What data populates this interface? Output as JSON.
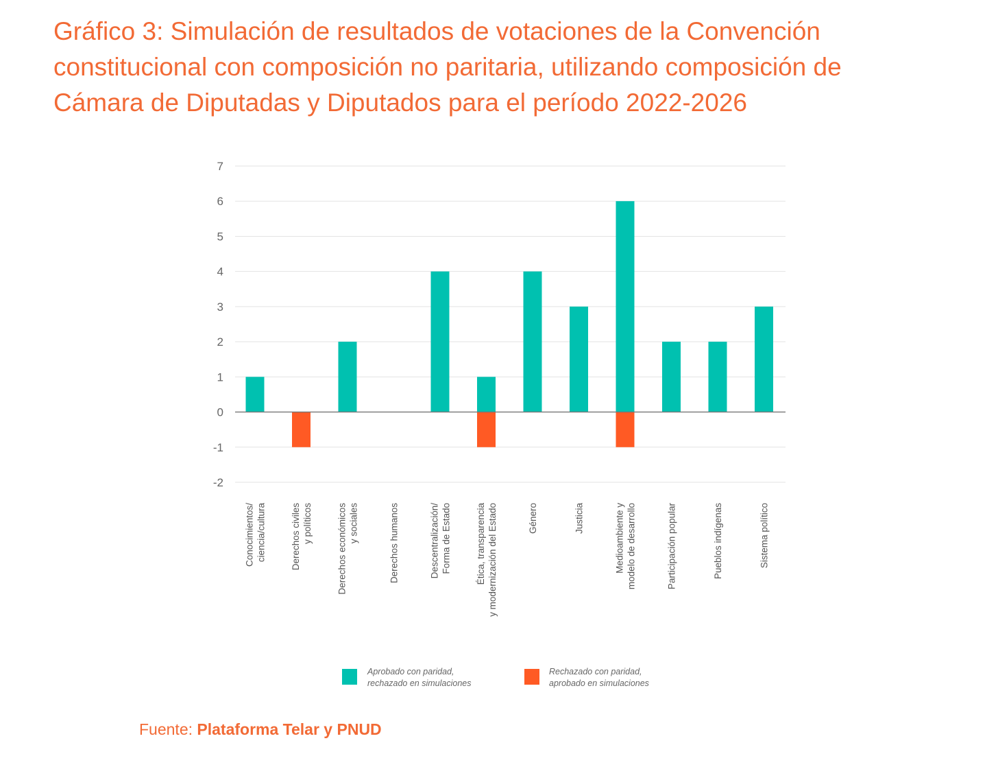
{
  "title_lines": [
    "Gráfico 3: Simulación de resultados de votaciones de la Convención",
    "constitucional con composición no paritaria, utilizando composición de",
    "Cámara de Diputadas y Diputados para el período 2022-2026"
  ],
  "source": {
    "prefix": "Fuente: ",
    "name": "Plataforma Telar y PNUD"
  },
  "colors": {
    "approved": "#00c1b0",
    "rejected": "#ff5a24",
    "title": "#f26a35",
    "grid": "#e3e3e3",
    "axis": "#777777"
  },
  "chart_data": {
    "type": "bar",
    "ylim": [
      -2,
      7
    ],
    "yticks": [
      7,
      6,
      5,
      4,
      3,
      2,
      1,
      0,
      -1,
      -2
    ],
    "grid": true,
    "legend_position": "bottom",
    "categories": [
      [
        "Conocimientos/",
        "ciencia/cultura"
      ],
      [
        "Derechos civiles",
        "y políticos"
      ],
      [
        "Derechos económicos",
        "y sociales"
      ],
      [
        "Derechos humanos"
      ],
      [
        "Descentralización/",
        "Forma de Estado"
      ],
      [
        "Ética, transparencia",
        "y modernización del Estado"
      ],
      [
        "Género"
      ],
      [
        "Justicia"
      ],
      [
        "Medioambiente y",
        "modelo de desarrollo"
      ],
      [
        "Participación popular"
      ],
      [
        "Pueblos indígenas"
      ],
      [
        "Sistema político"
      ]
    ],
    "series": [
      {
        "name": "Aprobado con paridad, rechazado en simulaciones",
        "legend_lines": [
          "Aprobado con paridad,",
          "rechazado en simulaciones"
        ],
        "color": "#00c1b0",
        "values": [
          1,
          0,
          2,
          0,
          4,
          1,
          4,
          3,
          6,
          2,
          2,
          3
        ]
      },
      {
        "name": "Rechazado con paridad, aprobado en simulaciones",
        "legend_lines": [
          "Rechazado con paridad,",
          "aprobado en simulaciones"
        ],
        "color": "#ff5a24",
        "values": [
          0,
          -1,
          0,
          0,
          0,
          -1,
          0,
          0,
          -1,
          0,
          0,
          0
        ]
      }
    ]
  }
}
